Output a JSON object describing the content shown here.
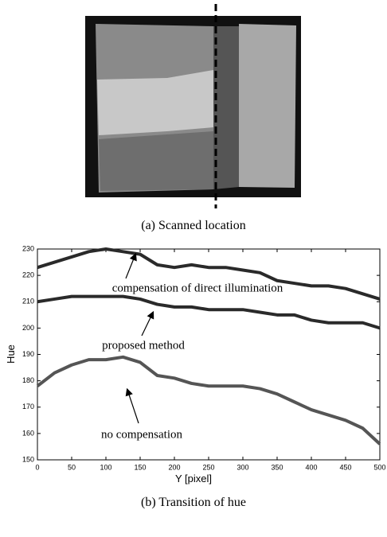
{
  "captions": [
    "(a) Scanned location",
    "(b) Transition of hue"
  ],
  "chart_data": {
    "type": "line",
    "x_label": "Y [pixel]",
    "y_label": "Hue",
    "x": [
      0,
      25,
      50,
      75,
      100,
      125,
      150,
      175,
      200,
      225,
      250,
      275,
      300,
      325,
      350,
      375,
      400,
      425,
      450,
      475,
      500
    ],
    "series": [
      {
        "name": "compensation of direct illumination",
        "color": "#2a2a2a",
        "values": [
          223,
          225,
          227,
          229,
          230,
          229,
          228,
          224,
          223,
          224,
          223,
          223,
          222,
          221,
          218,
          217,
          216,
          216,
          215,
          213,
          211
        ]
      },
      {
        "name": "proposed method",
        "color": "#2a2a2a",
        "values": [
          210,
          211,
          212,
          212,
          212,
          212,
          211,
          209,
          208,
          208,
          207,
          207,
          207,
          206,
          205,
          205,
          203,
          202,
          202,
          202,
          200
        ]
      },
      {
        "name": "no compensation",
        "color": "#555555",
        "values": [
          178,
          183,
          186,
          188,
          188,
          189,
          187,
          182,
          181,
          179,
          178,
          178,
          178,
          177,
          175,
          172,
          169,
          167,
          165,
          162,
          156
        ]
      }
    ],
    "xlim": [
      0,
      500
    ],
    "xticks": [
      0,
      50,
      100,
      150,
      200,
      250,
      300,
      350,
      400,
      450,
      500
    ],
    "ylim": [
      150,
      230
    ],
    "yticks": [
      150,
      160,
      170,
      180,
      190,
      200,
      210,
      220,
      230
    ],
    "grid": false
  }
}
